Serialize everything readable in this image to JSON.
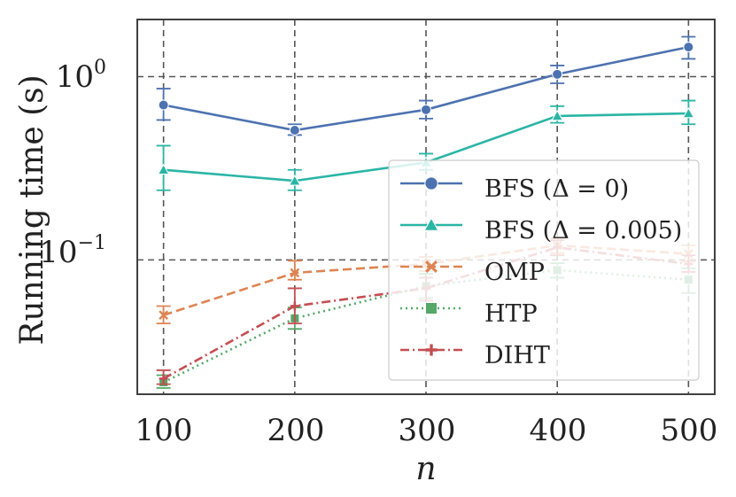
{
  "chart_data": {
    "type": "line",
    "title": "",
    "xlabel": "n",
    "ylabel": "Running time (s)",
    "yscale": "log",
    "xlim": [
      80,
      520
    ],
    "ylim": [
      0.0185,
      2.05
    ],
    "xticks": [
      100,
      200,
      300,
      400,
      500
    ],
    "xtick_labels": [
      "100",
      "200",
      "300",
      "400",
      "500"
    ],
    "yticks": [
      0.1,
      1.0
    ],
    "ytick_labels": [
      {
        "base": "10",
        "exp": "−1"
      },
      {
        "base": "10",
        "exp": "0"
      }
    ],
    "grid": true,
    "legend_position": "lower-right",
    "x": [
      100,
      200,
      300,
      400,
      500
    ],
    "series": [
      {
        "name": "BFS (Δ = 0)",
        "color": "#4c72b0",
        "linestyle": "solid",
        "marker": "circle",
        "values": [
          0.7,
          0.51,
          0.66,
          1.03,
          1.45
        ],
        "err_low": [
          0.58,
          0.48,
          0.59,
          0.92,
          1.25
        ],
        "err_high": [
          0.86,
          0.55,
          0.74,
          1.15,
          1.65
        ]
      },
      {
        "name": "BFS (Δ = 0.005)",
        "color": "#2ab5a5",
        "linestyle": "solid",
        "marker": "triangle",
        "values": [
          0.31,
          0.27,
          0.34,
          0.61,
          0.63
        ],
        "err_low": [
          0.24,
          0.24,
          0.31,
          0.56,
          0.55
        ],
        "err_high": [
          0.42,
          0.31,
          0.38,
          0.69,
          0.74
        ]
      },
      {
        "name": "OMP",
        "color": "#dd8452",
        "linestyle": "dashed",
        "marker": "x",
        "values": [
          0.05,
          0.085,
          0.095,
          0.12,
          0.108
        ],
        "err_low": [
          0.045,
          0.078,
          0.087,
          0.109,
          0.098
        ],
        "err_high": [
          0.056,
          0.099,
          0.104,
          0.131,
          0.12
        ]
      },
      {
        "name": "HTP",
        "color": "#55a868",
        "linestyle": "dotted",
        "marker": "square",
        "values": [
          0.0215,
          0.048,
          0.072,
          0.088,
          0.078
        ],
        "err_low": [
          0.02,
          0.042,
          0.062,
          0.08,
          0.066
        ],
        "err_high": [
          0.0235,
          0.055,
          0.084,
          0.096,
          0.09
        ]
      },
      {
        "name": "DIHT",
        "color": "#c44e52",
        "linestyle": "dashdot",
        "marker": "plus",
        "values": [
          0.0225,
          0.056,
          0.07,
          0.117,
          0.095
        ],
        "err_low": [
          0.021,
          0.045,
          0.06,
          0.106,
          0.086
        ],
        "err_high": [
          0.025,
          0.07,
          0.08,
          0.128,
          0.106
        ]
      }
    ]
  }
}
